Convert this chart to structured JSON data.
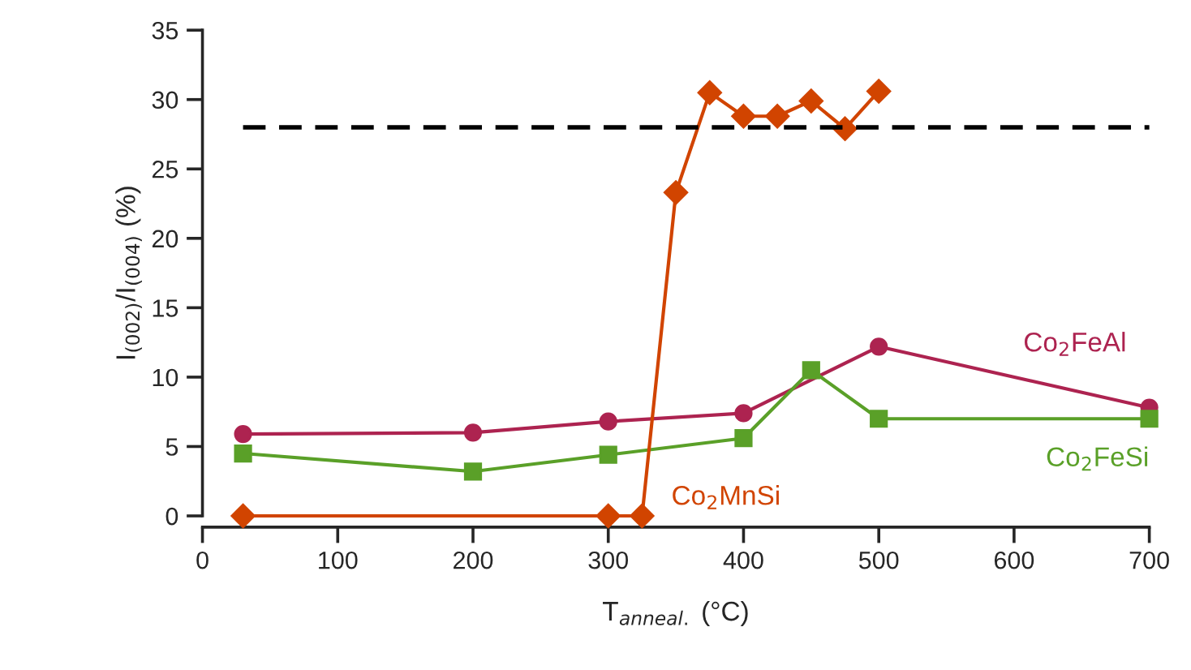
{
  "chart_data": {
    "type": "line",
    "xlabel": "T$_{anneal.}$ (°C)",
    "ylabel": "I$_{(002)}$/I$_{(004)}$ (%)",
    "xlim": [
      0,
      700
    ],
    "xticks": [
      0,
      100,
      200,
      300,
      400,
      500,
      600,
      700
    ],
    "ylim": [
      0,
      35
    ],
    "yticks": [
      0,
      5,
      10,
      15,
      20,
      25,
      30,
      35
    ],
    "grid": false,
    "legend": false,
    "series": [
      {
        "name": "Co$_{2}$FeAl",
        "color": "#ad2350",
        "marker": "circle",
        "x": [
          30,
          200,
          300,
          400,
          500,
          700
        ],
        "values": [
          5.9,
          6.0,
          6.8,
          7.4,
          12.2,
          7.8
        ]
      },
      {
        "name": "Co$_{2}$FeSi",
        "color": "#5aa028",
        "marker": "square",
        "x": [
          30,
          200,
          300,
          400,
          450,
          500,
          700
        ],
        "values": [
          4.5,
          3.2,
          4.4,
          5.6,
          10.5,
          7.0,
          7.0
        ]
      },
      {
        "name": "Co$_{2}$MnSi",
        "color": "#d14400",
        "marker": "diamond",
        "x": [
          30,
          300,
          325,
          350,
          375,
          400,
          425,
          450,
          475,
          500
        ],
        "values": [
          0,
          0,
          0,
          23.3,
          30.5,
          28.8,
          28.8,
          29.9,
          27.9,
          30.6
        ]
      },
      {
        "color": "#000000",
        "marker": "none",
        "line_style": "dashed",
        "x": [
          30,
          700
        ],
        "values": [
          28,
          28
        ]
      }
    ]
  }
}
